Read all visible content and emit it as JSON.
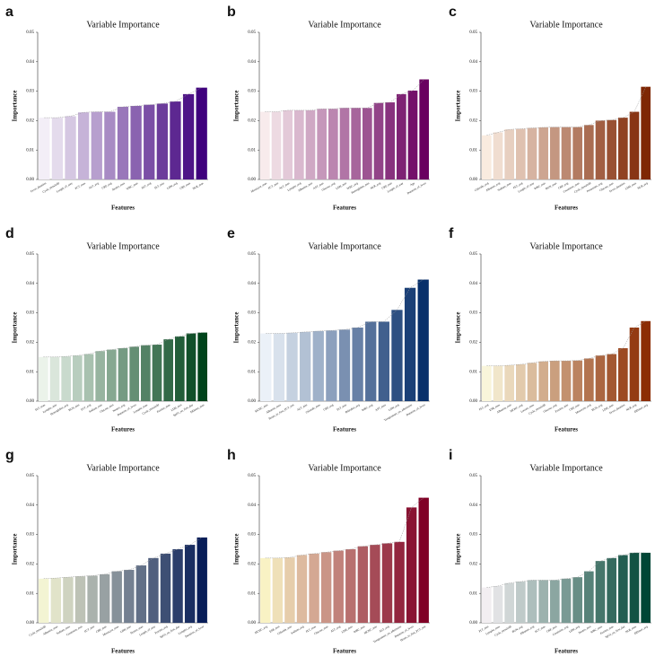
{
  "chart_data": [
    {
      "type": "bar",
      "panel": "a",
      "title": "Variable Importance",
      "xlabel": "Features",
      "ylabel": "Importance",
      "color_range": [
        "#fcfbfd",
        "#3f007d"
      ],
      "ylim": [
        0,
        0.05
      ],
      "yticks": [
        {
          "value": 0,
          "label": "0.00"
        },
        {
          "value": 0.01,
          "label": "0.01"
        },
        {
          "value": 0.02,
          "label": "0.02"
        },
        {
          "value": 0.03,
          "label": "0.03"
        },
        {
          "value": 0.04,
          "label": "0.04"
        },
        {
          "value": 0.05,
          "label": "0.05"
        }
      ],
      "categories": [
        "Fever_duration",
        "Cycle_threshold",
        "Length_of_stay",
        "PCT_max",
        "ALT_avg",
        "CRP_avg",
        "Neutro_max",
        "WBC_max",
        "AST_avg",
        "PLT_min",
        "LDH_avg",
        "CRP_max",
        "NLR_max"
      ],
      "values": [
        0.021,
        0.021,
        0.0215,
        0.0228,
        0.023,
        0.023,
        0.0247,
        0.025,
        0.0254,
        0.0258,
        0.0265,
        0.029,
        0.0312
      ]
    },
    {
      "type": "bar",
      "panel": "b",
      "title": "Variable Importance",
      "xlabel": "Features",
      "ylabel": "Importance",
      "color_range": [
        "#fff7f3",
        "#6a0060"
      ],
      "ylim": [
        0,
        0.05
      ],
      "yticks": [
        {
          "value": 0,
          "label": "0.00"
        },
        {
          "value": 0.01,
          "label": "0.01"
        },
        {
          "value": 0.02,
          "label": "0.02"
        },
        {
          "value": 0.03,
          "label": "0.03"
        },
        {
          "value": 0.04,
          "label": "0.04"
        },
        {
          "value": 0.05,
          "label": "0.05"
        }
      ],
      "categories": [
        "Monocyte_max",
        "PCT_min",
        "ALT_max",
        "Lympho_avg",
        "Albumin_min",
        "AST_max",
        "Glucose_avg",
        "LDH_min",
        "WBC_avg",
        "Hemoglobin_min",
        "NLR_avg",
        "CRP_min",
        "Length_of_stay",
        "Age",
        "Duration_of_fever"
      ],
      "values": [
        0.023,
        0.023,
        0.0235,
        0.0235,
        0.0235,
        0.024,
        0.024,
        0.0243,
        0.0243,
        0.0243,
        0.026,
        0.0262,
        0.029,
        0.0302,
        0.034
      ]
    },
    {
      "type": "bar",
      "panel": "c",
      "title": "Variable Importance",
      "xlabel": "Features",
      "ylabel": "Importance",
      "color_range": [
        "#fff5eb",
        "#7f2704"
      ],
      "ylim": [
        0,
        0.05
      ],
      "yticks": [
        {
          "value": 0,
          "label": "0.00"
        },
        {
          "value": 0.01,
          "label": "0.01"
        },
        {
          "value": 0.02,
          "label": "0.02"
        },
        {
          "value": 0.03,
          "label": "0.03"
        },
        {
          "value": 0.04,
          "label": "0.04"
        },
        {
          "value": 0.05,
          "label": "0.05"
        }
      ],
      "categories": [
        "Chloride_avg",
        "Albumin_avg",
        "Sodium_max",
        "PLT_avg",
        "Length_of_stay",
        "WBC_min",
        "BUN_max",
        "CRP_avg",
        "Creatinine_max",
        "Cycle_threshold",
        "Potassium_avg",
        "Glucose_max",
        "Fever_duration",
        "LDH_max",
        "NLR_avg"
      ],
      "values": [
        0.015,
        0.016,
        0.017,
        0.0172,
        0.0175,
        0.0177,
        0.0178,
        0.0178,
        0.0178,
        0.0185,
        0.02,
        0.0202,
        0.021,
        0.023,
        0.0315
      ]
    },
    {
      "type": "bar",
      "panel": "d",
      "title": "Variable Importance",
      "xlabel": "Features",
      "ylabel": "Importance",
      "color_range": [
        "#f7fcf5",
        "#00441b"
      ],
      "ylim": [
        0,
        0.05
      ],
      "yticks": [
        {
          "value": 0,
          "label": "0.00"
        },
        {
          "value": 0.01,
          "label": "0.01"
        },
        {
          "value": 0.02,
          "label": "0.02"
        },
        {
          "value": 0.03,
          "label": "0.03"
        },
        {
          "value": 0.04,
          "label": "0.04"
        },
        {
          "value": 0.05,
          "label": "0.05"
        }
      ],
      "categories": [
        "PLT_max",
        "Lympho_min",
        "Hemoglobin_avg",
        "BUN_min",
        "PCT_avg",
        "Sodium_min",
        "Glucose_min",
        "Neutro_avg",
        "Duration_of_fever",
        "Lympho_max",
        "Cycle_threshold",
        "Ferritin_max",
        "LDH_min",
        "SpO2_on_first_day",
        "DDimer_max"
      ],
      "values": [
        0.015,
        0.015,
        0.0152,
        0.0155,
        0.016,
        0.017,
        0.0175,
        0.018,
        0.0185,
        0.019,
        0.0192,
        0.021,
        0.022,
        0.023,
        0.0233
      ]
    },
    {
      "type": "bar",
      "panel": "e",
      "title": "Variable Importance",
      "xlabel": "Features",
      "ylabel": "Importance",
      "color_range": [
        "#f7fbff",
        "#08306b"
      ],
      "ylim": [
        0,
        0.05
      ],
      "yticks": [
        {
          "value": 0,
          "label": "0.00"
        },
        {
          "value": 0.01,
          "label": "0.01"
        },
        {
          "value": 0.02,
          "label": "0.02"
        },
        {
          "value": 0.03,
          "label": "0.03"
        },
        {
          "value": 0.04,
          "label": "0.04"
        },
        {
          "value": 0.05,
          "label": "0.05"
        }
      ],
      "categories": [
        "MCHC_min",
        "Albumin_max",
        "Hours_to_first_PCT_test",
        "ALT_min",
        "Chloride_max",
        "CRP_avg",
        "PLT_min",
        "Bilirubin_avg",
        "WBC_avg",
        "AST_max",
        "LDH_avg",
        "Temperature_on_admission",
        "Duration_of_fever"
      ],
      "values": [
        0.023,
        0.023,
        0.0232,
        0.0235,
        0.0238,
        0.024,
        0.0243,
        0.025,
        0.027,
        0.027,
        0.031,
        0.0385,
        0.0413
      ]
    },
    {
      "type": "bar",
      "panel": "f",
      "title": "Variable Importance",
      "xlabel": "Features",
      "ylabel": "Importance",
      "color_range": [
        "#ffffe5",
        "#8c2d04"
      ],
      "ylim": [
        0,
        0.05
      ],
      "yticks": [
        {
          "value": 0,
          "label": "0.00"
        },
        {
          "value": 0.01,
          "label": "0.01"
        },
        {
          "value": 0.02,
          "label": "0.02"
        },
        {
          "value": 0.03,
          "label": "0.03"
        },
        {
          "value": 0.04,
          "label": "0.04"
        },
        {
          "value": 0.05,
          "label": "0.05"
        }
      ],
      "categories": [
        "PLT_avg",
        "ESR_max",
        "Albumin_min",
        "MCHC_avg",
        "Lactate_max",
        "Cycle_threshold",
        "Glucose_avg",
        "Ferritin_min",
        "CRP_min",
        "Monocyte_avg",
        "BUN_avg",
        "LDH_max",
        "Fever_duration",
        "NLR_avg",
        "DDimer_avg"
      ],
      "values": [
        0.012,
        0.012,
        0.0122,
        0.0125,
        0.013,
        0.0135,
        0.0137,
        0.0137,
        0.0138,
        0.0145,
        0.0155,
        0.016,
        0.018,
        0.025,
        0.0272
      ]
    },
    {
      "type": "bar",
      "panel": "g",
      "title": "Variable Importance",
      "xlabel": "Features",
      "ylabel": "Importance",
      "color_range": [
        "#ffffd9",
        "#081d58"
      ],
      "ylim": [
        0,
        0.05
      ],
      "yticks": [
        {
          "value": 0,
          "label": "0.00"
        },
        {
          "value": 0.01,
          "label": "0.01"
        },
        {
          "value": 0.02,
          "label": "0.02"
        },
        {
          "value": 0.03,
          "label": "0.03"
        },
        {
          "value": 0.04,
          "label": "0.04"
        },
        {
          "value": 0.05,
          "label": "0.05"
        }
      ],
      "categories": [
        "Cycle_threshold",
        "Albumin_max",
        "Sodium_max",
        "Creatinine_min",
        "PCT_min",
        "CRP_max",
        "Monocyte_max",
        "LDH_min",
        "Neutro_max",
        "Length_of_stay",
        "Ferritin_avg",
        "SpO2_on_first_day",
        "Lympho_avg",
        "Duration_of_fever"
      ],
      "values": [
        0.015,
        0.0152,
        0.0155,
        0.0158,
        0.016,
        0.0165,
        0.0175,
        0.018,
        0.0195,
        0.022,
        0.0235,
        0.025,
        0.0265,
        0.029
      ]
    },
    {
      "type": "bar",
      "panel": "h",
      "title": "Variable Importance",
      "xlabel": "Features",
      "ylabel": "Importance",
      "color_range": [
        "#ffffcc",
        "#800026"
      ],
      "ylim": [
        0,
        0.05
      ],
      "yticks": [
        {
          "value": 0,
          "label": "0.00"
        },
        {
          "value": 0.01,
          "label": "0.01"
        },
        {
          "value": 0.02,
          "label": "0.02"
        },
        {
          "value": 0.03,
          "label": "0.03"
        },
        {
          "value": 0.04,
          "label": "0.04"
        },
        {
          "value": 0.05,
          "label": "0.05"
        }
      ],
      "categories": [
        "MCHC_avg",
        "ESR_min",
        "Chloride_min",
        "Sodium_avg",
        "PLT_max",
        "Glucose_max",
        "ALT_avg",
        "LDH_max",
        "WBC_min",
        "MCHC_min",
        "AST_avg",
        "Temperature_on_admission",
        "Duration_of_fever",
        "Hours_to_first_PCT_test"
      ],
      "values": [
        0.022,
        0.022,
        0.0222,
        0.023,
        0.0235,
        0.024,
        0.0245,
        0.025,
        0.026,
        0.0265,
        0.027,
        0.0275,
        0.0392,
        0.0425
      ]
    },
    {
      "type": "bar",
      "panel": "i",
      "title": "Variable Importance",
      "xlabel": "Features",
      "ylabel": "Importance",
      "color_range": [
        "#fff7fb",
        "#014636"
      ],
      "ylim": [
        0,
        0.05
      ],
      "yticks": [
        {
          "value": 0,
          "label": "0.00"
        },
        {
          "value": 0.01,
          "label": "0.01"
        },
        {
          "value": 0.02,
          "label": "0.02"
        },
        {
          "value": 0.03,
          "label": "0.03"
        },
        {
          "value": 0.04,
          "label": "0.04"
        },
        {
          "value": 0.05,
          "label": "0.05"
        }
      ],
      "categories": [
        "PLT_min",
        "Lympho_max",
        "Cycle_threshold",
        "BUN_avg",
        "Albumin_avg",
        "PCT_max",
        "CRP_min",
        "Creatinine_avg",
        "LDH_avg",
        "Neutro_min",
        "WBC_max",
        "Ferritin_max",
        "SpO2_on_first_day",
        "NLR_max",
        "DDimer_avg"
      ],
      "values": [
        0.012,
        0.0125,
        0.0135,
        0.014,
        0.0145,
        0.0145,
        0.0145,
        0.015,
        0.0155,
        0.0175,
        0.021,
        0.022,
        0.023,
        0.0238,
        0.0238
      ]
    }
  ]
}
